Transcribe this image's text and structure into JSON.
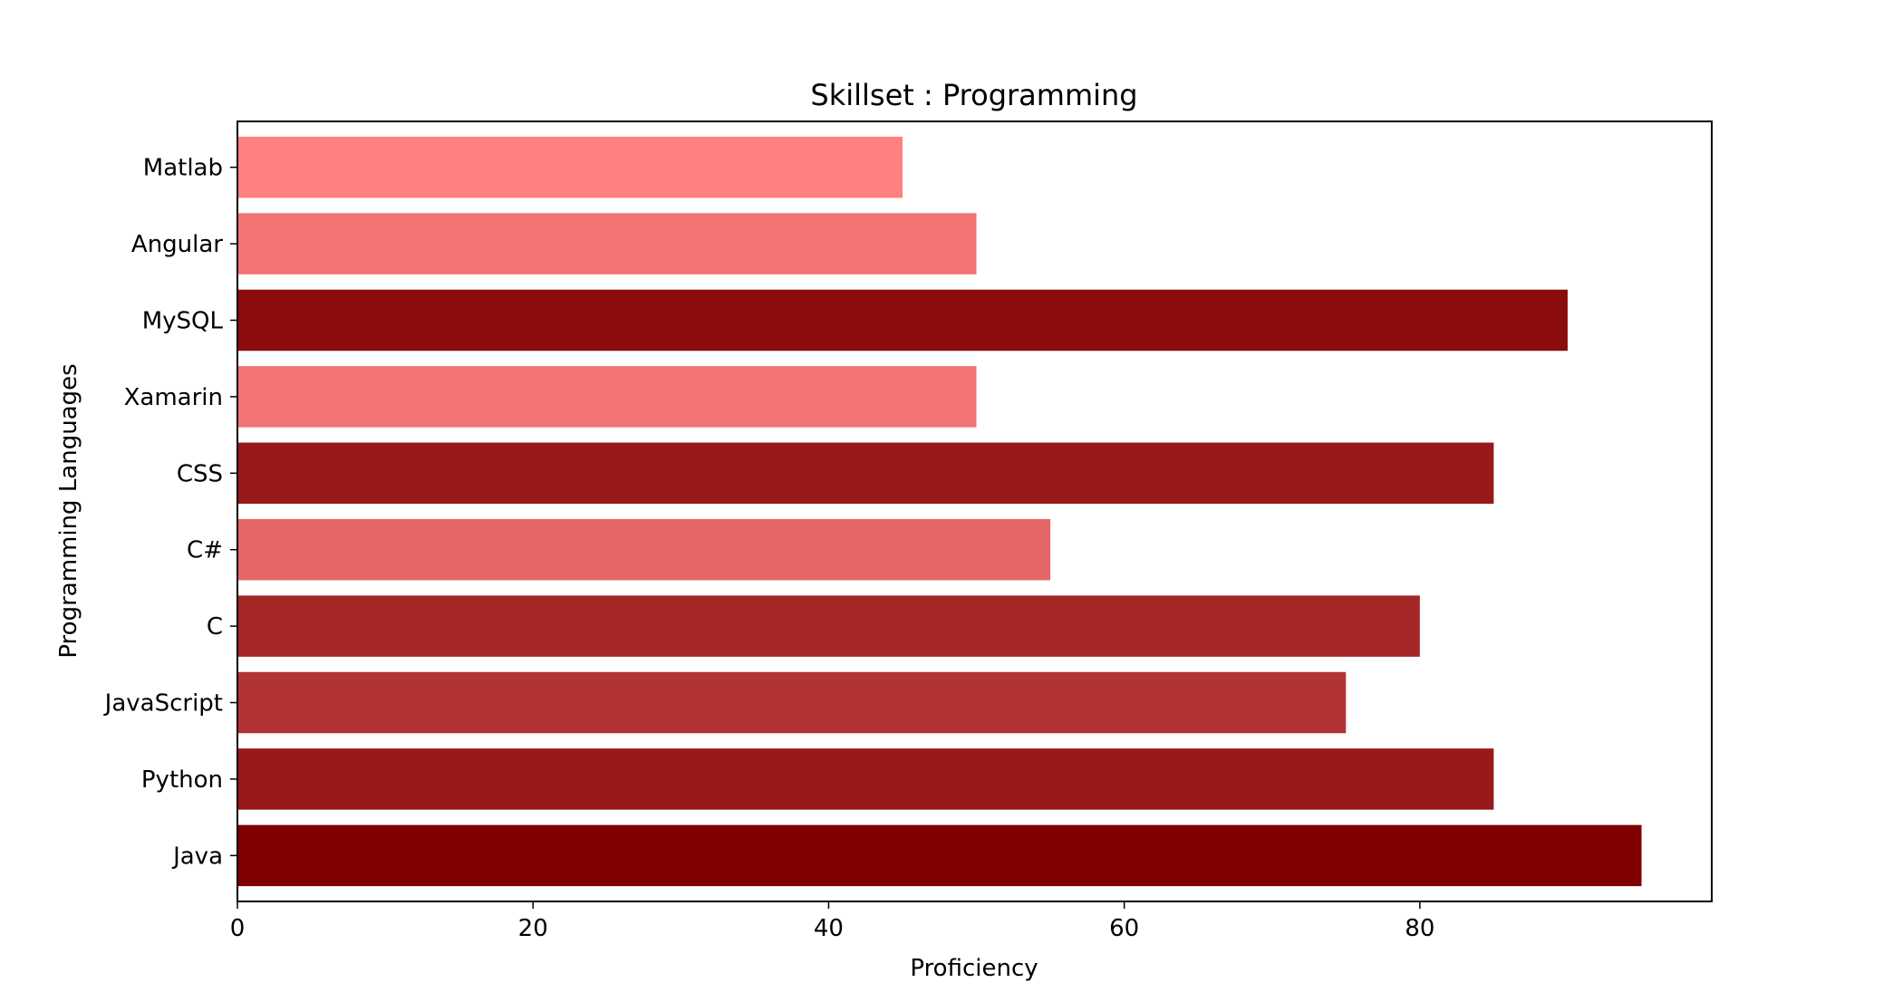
{
  "chart_data": {
    "type": "bar",
    "orientation": "horizontal",
    "title": "Skillset : Programming",
    "xlabel": "Proficiency",
    "ylabel": "Programming Languages",
    "categories": [
      "Java",
      "Python",
      "JavaScript",
      "C",
      "C#",
      "CSS",
      "Xamarin",
      "MySQL",
      "Angular",
      "Matlab"
    ],
    "values": [
      95,
      85,
      75,
      80,
      55,
      85,
      50,
      90,
      50,
      45
    ],
    "colors": [
      "#7f0000",
      "#981919",
      "#b23333",
      "#a52626",
      "#e56666",
      "#981919",
      "#f27373",
      "#8b0c0c",
      "#f27373",
      "#ff8080"
    ],
    "xlim": [
      0,
      99.75
    ],
    "xticks": [
      0,
      20,
      40,
      60,
      80
    ],
    "grid": false,
    "legend": "none"
  }
}
